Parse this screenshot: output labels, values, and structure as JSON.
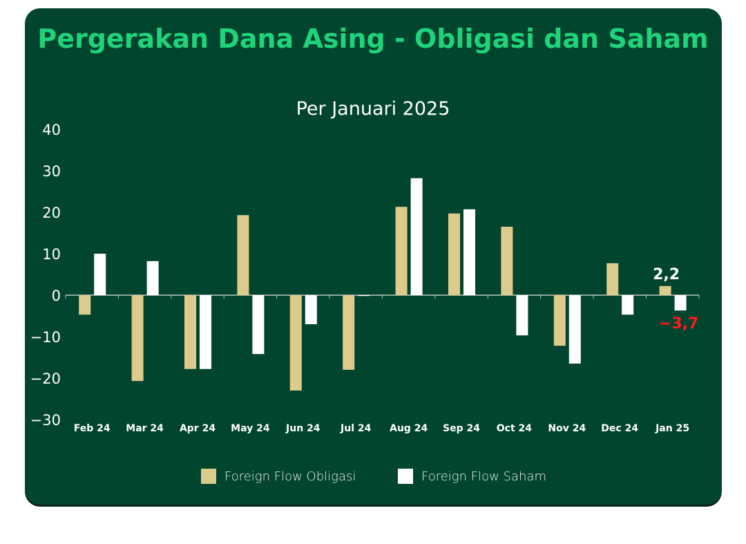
{
  "chart_data": {
    "type": "bar",
    "title": "Pergerakan Dana Asing - Obligasi dan Saham",
    "subtitle": "Per Januari 2025",
    "categories": [
      "Feb 24",
      "Mar 24",
      "Apr 24",
      "May 24",
      "Jun 24",
      "Jul 24",
      "Aug 24",
      "Sep 24",
      "Oct 24",
      "Nov 24",
      "Dec 24",
      "Jan 25"
    ],
    "series": [
      {
        "name": "Foreign Flow Obligasi",
        "color": "#dccb8c",
        "values": [
          -4.7,
          -20.7,
          -17.8,
          19.3,
          -23,
          -18,
          21.3,
          19.7,
          16.5,
          -12.2,
          7.7,
          2.2
        ]
      },
      {
        "name": "Foreign Flow Saham",
        "color": "#ffffff",
        "values": [
          10,
          8.2,
          -17.8,
          -14.2,
          -7,
          -0.2,
          28.2,
          20.7,
          -9.7,
          -16.5,
          -4.7,
          -3.7
        ]
      }
    ],
    "ylim": [
      -30,
      40
    ],
    "yticks": [
      40,
      30,
      20,
      10,
      0,
      -10,
      -20,
      -30
    ],
    "ytick_labels": [
      "40",
      "30",
      "20",
      "10",
      "0",
      "−10",
      "−20",
      "−30"
    ],
    "annotations": [
      {
        "text": "2,2",
        "color": "#ffffff"
      },
      {
        "text": "−3,7",
        "color": "#ff1a1a"
      }
    ],
    "legend": "bottom",
    "grid": false
  }
}
